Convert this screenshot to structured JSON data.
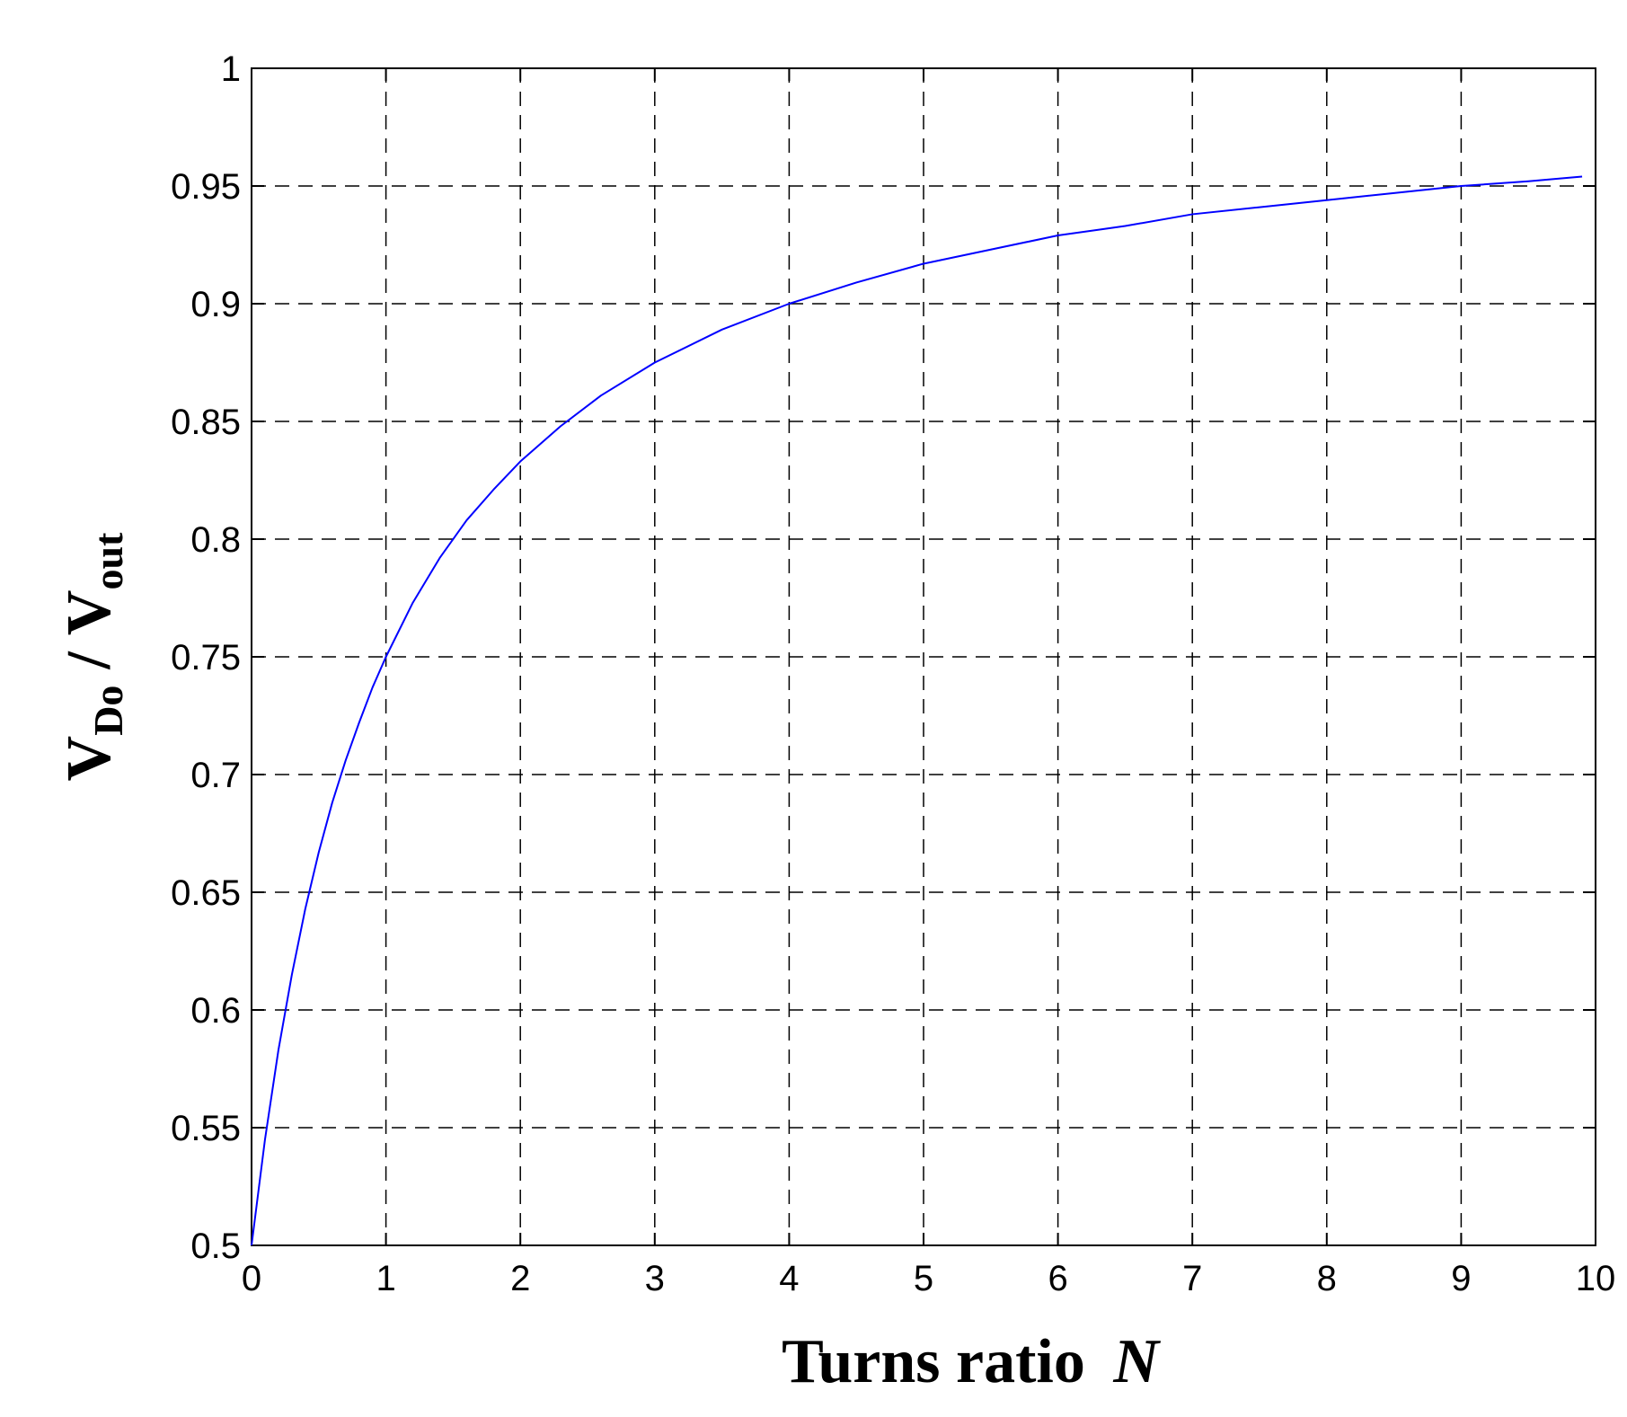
{
  "chart_data": {
    "type": "line",
    "xlabel": "Turns ratio",
    "xlabel_var": "N",
    "ylabel_main": "V",
    "ylabel_sub1": "Do",
    "ylabel_sep": "/",
    "ylabel_main2": "V",
    "ylabel_sub2": "out",
    "xlim": [
      0,
      10
    ],
    "ylim": [
      0.5,
      1
    ],
    "x_ticks": [
      "0",
      "1",
      "2",
      "3",
      "4",
      "5",
      "6",
      "7",
      "8",
      "9",
      "10"
    ],
    "y_ticks": [
      "0.5",
      "0.55",
      "0.6",
      "0.65",
      "0.7",
      "0.75",
      "0.8",
      "0.85",
      "0.9",
      "0.95",
      "1"
    ],
    "grid": true,
    "series": [
      {
        "color": "#0000ff",
        "x": [
          0,
          0.1,
          0.2,
          0.3,
          0.4,
          0.5,
          0.6,
          0.7,
          0.8,
          0.9,
          1.0,
          1.2,
          1.4,
          1.6,
          1.8,
          2.0,
          2.3,
          2.6,
          3.0,
          3.5,
          4.0,
          4.5,
          5.0,
          5.5,
          6.0,
          6.5,
          7.0,
          7.5,
          8.0,
          8.5,
          9.0,
          9.5,
          9.9
        ],
        "y": [
          0.5,
          0.545,
          0.583,
          0.615,
          0.643,
          0.667,
          0.688,
          0.706,
          0.722,
          0.737,
          0.75,
          0.773,
          0.792,
          0.808,
          0.821,
          0.833,
          0.848,
          0.861,
          0.875,
          0.889,
          0.9,
          0.909,
          0.917,
          0.923,
          0.929,
          0.933,
          0.938,
          0.941,
          0.944,
          0.947,
          0.95,
          0.952,
          0.954
        ]
      }
    ]
  },
  "colors": {
    "axis": "#000000",
    "grid": "#000000",
    "line": "#0000ff"
  }
}
